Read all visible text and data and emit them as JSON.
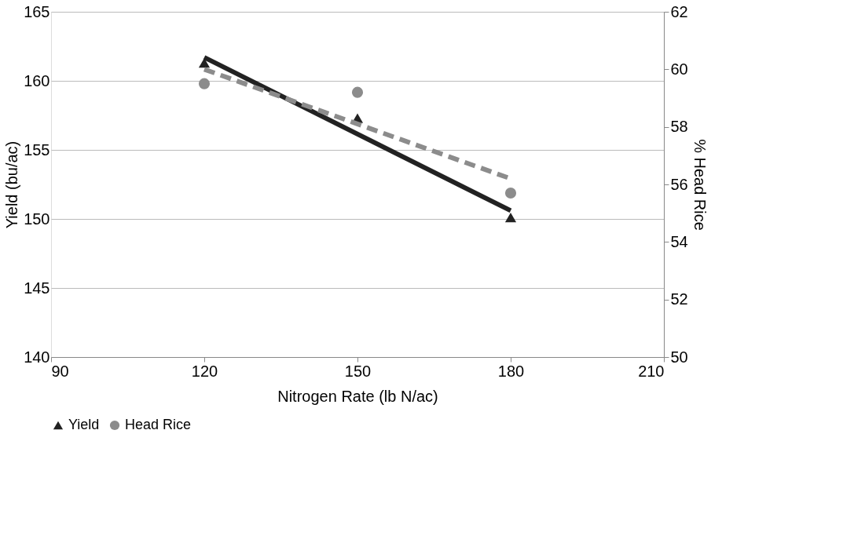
{
  "chart_data": {
    "type": "scatter",
    "xlabel": "Nitrogen Rate (lb N/ac)",
    "ylabel": "Yield (bu/ac)",
    "y2label": "% Head Rice",
    "xlim": [
      90,
      210
    ],
    "xticks": [
      90,
      120,
      150,
      180,
      210
    ],
    "ylim": [
      140,
      165
    ],
    "yticks": [
      140,
      145,
      150,
      155,
      160,
      165
    ],
    "y2lim": [
      50,
      62
    ],
    "y2ticks": [
      50,
      52,
      54,
      56,
      58,
      60,
      62
    ],
    "grid": "y",
    "legend": "bottom",
    "series": [
      {
        "name": "Yield",
        "color": "#222222",
        "marker": "triangle",
        "x": [
          120,
          150,
          180
        ],
        "values": [
          161.3,
          157.3,
          150.1
        ]
      },
      {
        "name": "Head Rice",
        "color": "#8c8c8c",
        "marker": "circle",
        "axis": "y2",
        "x": [
          120,
          150,
          180
        ],
        "values": [
          59.5,
          59.2,
          55.7
        ]
      },
      {
        "type": "line",
        "color": "#222222",
        "line_style": "solid",
        "x": [
          120,
          180
        ],
        "values": [
          161.7,
          150.6
        ]
      },
      {
        "type": "line",
        "color": "#8c8c8c",
        "line_style": "dashed",
        "axis": "y2",
        "x": [
          120,
          180
        ],
        "values": [
          60.0,
          56.2
        ]
      }
    ]
  }
}
